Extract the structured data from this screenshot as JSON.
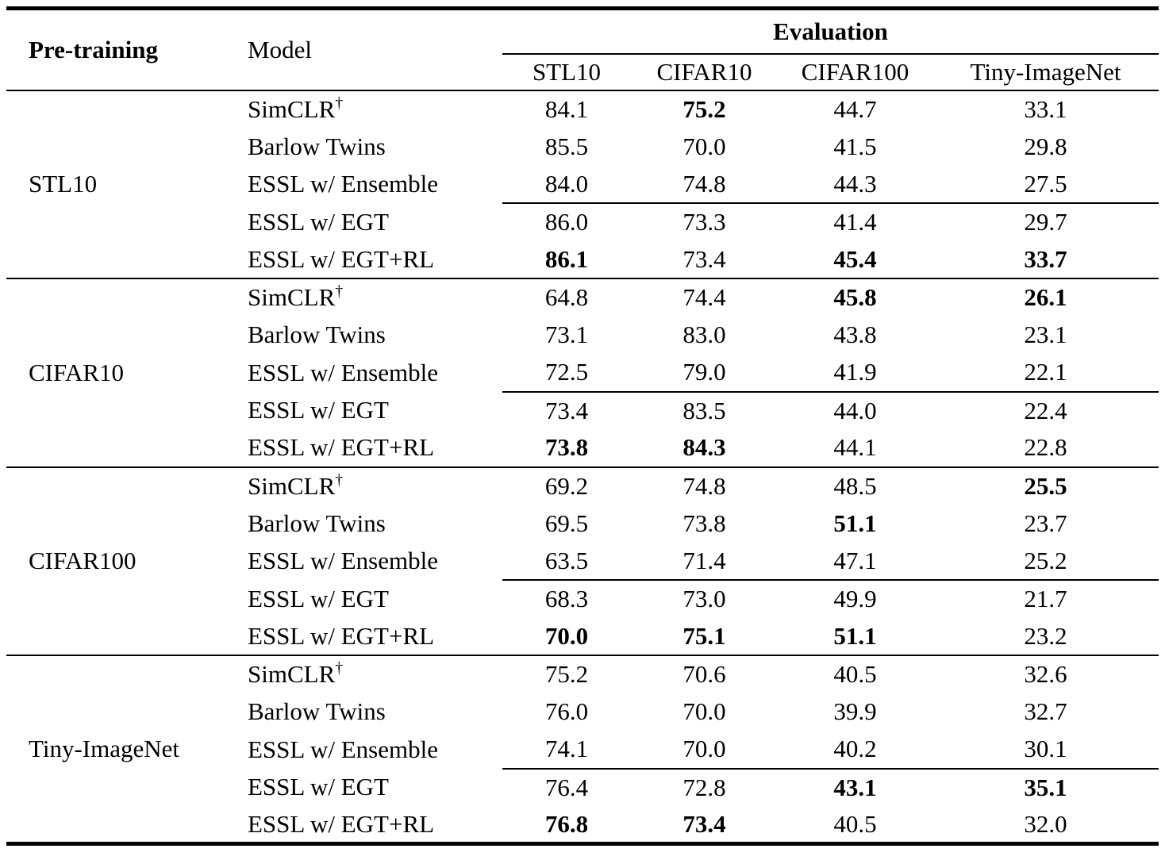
{
  "page": {
    "background": "#ffffff",
    "text_color": "#000000",
    "rule_color": "#000000"
  },
  "table": {
    "header": {
      "pretraining_label": "Pre-training",
      "model_label": "Model",
      "evaluation_label": "Evaluation",
      "eval_columns": [
        "STL10",
        "CIFAR10",
        "CIFAR100",
        "Tiny-ImageNet"
      ]
    },
    "groups": [
      {
        "pretraining": "STL10",
        "rows": [
          {
            "model": "SimCLR",
            "sup": "†",
            "values": [
              "84.1",
              "75.2",
              "44.7",
              "33.1"
            ],
            "bold": [
              false,
              true,
              false,
              false
            ]
          },
          {
            "model": "Barlow Twins",
            "values": [
              "85.5",
              "70.0",
              "41.5",
              "29.8"
            ],
            "bold": [
              false,
              false,
              false,
              false
            ]
          },
          {
            "model": "ESSL w/ Ensemble",
            "values": [
              "84.0",
              "74.8",
              "44.3",
              "27.5"
            ],
            "bold": [
              false,
              false,
              false,
              false
            ]
          },
          {
            "model": "ESSL w/ EGT",
            "values": [
              "86.0",
              "73.3",
              "41.4",
              "29.7"
            ],
            "bold": [
              false,
              false,
              false,
              false
            ]
          },
          {
            "model": "ESSL w/ EGT+RL",
            "values": [
              "86.1",
              "73.4",
              "45.4",
              "33.7"
            ],
            "bold": [
              true,
              false,
              true,
              true
            ]
          }
        ]
      },
      {
        "pretraining": "CIFAR10",
        "rows": [
          {
            "model": "SimCLR",
            "sup": "†",
            "values": [
              "64.8",
              "74.4",
              "45.8",
              "26.1"
            ],
            "bold": [
              false,
              false,
              true,
              true
            ]
          },
          {
            "model": "Barlow Twins",
            "values": [
              "73.1",
              "83.0",
              "43.8",
              "23.1"
            ],
            "bold": [
              false,
              false,
              false,
              false
            ]
          },
          {
            "model": "ESSL w/ Ensemble",
            "values": [
              "72.5",
              "79.0",
              "41.9",
              "22.1"
            ],
            "bold": [
              false,
              false,
              false,
              false
            ]
          },
          {
            "model": "ESSL w/ EGT",
            "values": [
              "73.4",
              "83.5",
              "44.0",
              "22.4"
            ],
            "bold": [
              false,
              false,
              false,
              false
            ]
          },
          {
            "model": "ESSL w/ EGT+RL",
            "values": [
              "73.8",
              "84.3",
              "44.1",
              "22.8"
            ],
            "bold": [
              true,
              true,
              false,
              false
            ]
          }
        ]
      },
      {
        "pretraining": "CIFAR100",
        "rows": [
          {
            "model": "SimCLR",
            "sup": "†",
            "values": [
              "69.2",
              "74.8",
              "48.5",
              "25.5"
            ],
            "bold": [
              false,
              false,
              false,
              true
            ]
          },
          {
            "model": "Barlow Twins",
            "values": [
              "69.5",
              "73.8",
              "51.1",
              "23.7"
            ],
            "bold": [
              false,
              false,
              true,
              false
            ]
          },
          {
            "model": "ESSL w/ Ensemble",
            "values": [
              "63.5",
              "71.4",
              "47.1",
              "25.2"
            ],
            "bold": [
              false,
              false,
              false,
              false
            ]
          },
          {
            "model": "ESSL w/ EGT",
            "values": [
              "68.3",
              "73.0",
              "49.9",
              "21.7"
            ],
            "bold": [
              false,
              false,
              false,
              false
            ]
          },
          {
            "model": "ESSL w/ EGT+RL",
            "values": [
              "70.0",
              "75.1",
              "51.1",
              "23.2"
            ],
            "bold": [
              true,
              true,
              true,
              false
            ]
          }
        ]
      },
      {
        "pretraining": "Tiny-ImageNet",
        "rows": [
          {
            "model": "SimCLR",
            "sup": "†",
            "values": [
              "75.2",
              "70.6",
              "40.5",
              "32.6"
            ],
            "bold": [
              false,
              false,
              false,
              false
            ]
          },
          {
            "model": "Barlow Twins",
            "values": [
              "76.0",
              "70.0",
              "39.9",
              "32.7"
            ],
            "bold": [
              false,
              false,
              false,
              false
            ]
          },
          {
            "model": "ESSL w/ Ensemble",
            "values": [
              "74.1",
              "70.0",
              "40.2",
              "30.1"
            ],
            "bold": [
              false,
              false,
              false,
              false
            ]
          },
          {
            "model": "ESSL w/ EGT",
            "values": [
              "76.4",
              "72.8",
              "43.1",
              "35.1"
            ],
            "bold": [
              false,
              false,
              true,
              true
            ]
          },
          {
            "model": "ESSL w/ EGT+RL",
            "values": [
              "76.8",
              "73.4",
              "40.5",
              "32.0"
            ],
            "bold": [
              true,
              true,
              false,
              false
            ]
          }
        ]
      }
    ]
  }
}
